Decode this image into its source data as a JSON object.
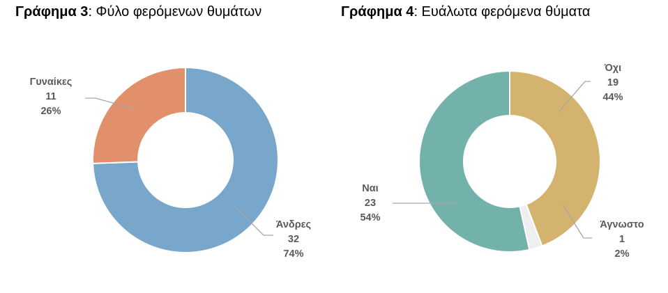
{
  "chart_data": [
    {
      "type": "pie",
      "title_bold": "Γράφημα 3",
      "title_rest": ": Φύλο φερόμενων θυμάτων",
      "slices": [
        {
          "label": "Άνδρες",
          "value": 32,
          "percent": "74%",
          "color": "#79a7cc"
        },
        {
          "label": "Γυναίκες",
          "value": 11,
          "percent": "26%",
          "color": "#e2906c"
        }
      ]
    },
    {
      "type": "pie",
      "title_bold": "Γράφημα 4",
      "title_rest": ": Ευάλωτα φερόμενα θύματα",
      "slices": [
        {
          "label": "Όχι",
          "value": 19,
          "percent": "44%",
          "color": "#d4b36f"
        },
        {
          "label": "Άγνωστο",
          "value": 1,
          "percent": "2%",
          "color": "#efefef"
        },
        {
          "label": "Ναι",
          "value": 23,
          "percent": "54%",
          "color": "#73b1ab"
        }
      ]
    }
  ]
}
